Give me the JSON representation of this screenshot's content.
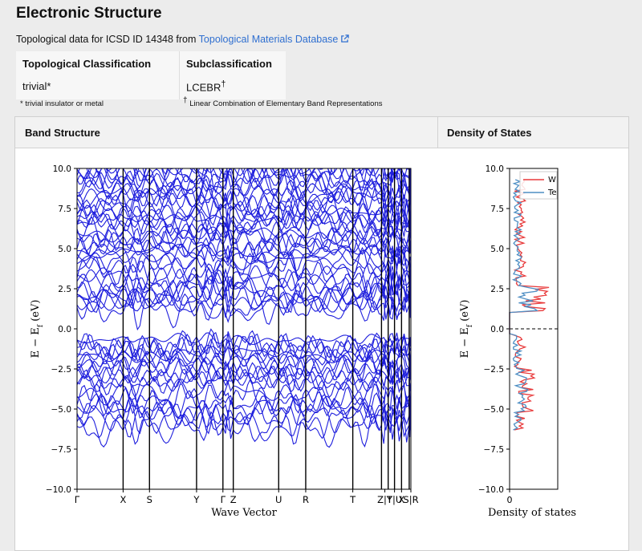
{
  "page": {
    "title": "Electronic Structure",
    "source_prefix": "Topological data for ICSD ID 14348 from ",
    "source_link": "Topological Materials Database",
    "external_icon": "external-link-icon"
  },
  "topology": {
    "headers": [
      "Topological Classification",
      "Subclassification"
    ],
    "values": [
      "trivial*",
      "LCEBR"
    ],
    "dagger": "†",
    "footnote_trivial": "* trivial insulator or metal",
    "footnote_lcebr": "Linear Combination of Elementary Band Representations"
  },
  "panels": {
    "band_title": "Band Structure",
    "dos_title": "Density of States"
  },
  "chart_data": [
    {
      "type": "line",
      "title": "Band Structure",
      "xlabel": "Wave Vector",
      "ylabel": "E − E_f (eV)",
      "ylim": [
        -10,
        10
      ],
      "yticks": [
        "−10.0",
        "−7.5",
        "−5.0",
        "−2.5",
        "0.0",
        "2.5",
        "5.0",
        "7.5",
        "10.0"
      ],
      "xticks": [
        "Γ",
        "X",
        "S",
        "Y",
        "Γ",
        "Z",
        "U",
        "R",
        "T",
        "Z|Y",
        "T|U",
        "X",
        "S|R"
      ],
      "line_color": "#1f1fdd"
    },
    {
      "type": "line",
      "xlabel": "Density of states",
      "ylabel": "E − E_f (eV)",
      "ylim": [
        -10,
        10
      ],
      "yticks": [
        "−10.0",
        "−7.5",
        "−5.0",
        "−2.5",
        "0.0",
        "2.5",
        "5.0",
        "7.5",
        "10.0"
      ],
      "xticks": [
        "0"
      ],
      "legend_position": "top-right",
      "series": [
        {
          "name": "W",
          "color": "#e8393a"
        },
        {
          "name": "Te",
          "color": "#4f8fc4"
        }
      ]
    }
  ]
}
